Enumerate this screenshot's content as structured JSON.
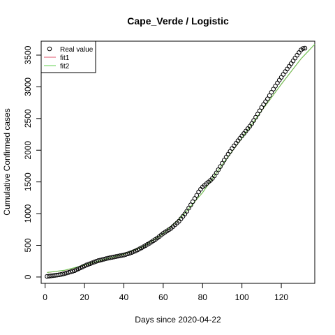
{
  "chart_data": {
    "type": "scatter",
    "title": "Cape_Verde / Logistic",
    "xlabel": "Days since 2020-04-22",
    "ylabel": "Cumulative Confirmed cases",
    "xlim": [
      -2,
      137
    ],
    "ylim": [
      -100,
      3720
    ],
    "xticks": [
      0,
      20,
      40,
      60,
      80,
      100,
      120
    ],
    "yticks": [
      0,
      500,
      1000,
      1500,
      2000,
      2500,
      3000,
      3500
    ],
    "legend_position": "top-left",
    "legend": [
      {
        "label": "Real value",
        "symbol": "circle",
        "color": "#000000"
      },
      {
        "label": "fit1",
        "symbol": "line",
        "color": "#df536b"
      },
      {
        "label": "fit2",
        "symbol": "line",
        "color": "#61d04f"
      }
    ],
    "series": [
      {
        "name": "Real value",
        "kind": "points",
        "color": "#000000",
        "x": [
          1,
          2,
          3,
          4,
          5,
          6,
          7,
          8,
          9,
          10,
          11,
          12,
          13,
          14,
          15,
          16,
          17,
          18,
          19,
          20,
          21,
          22,
          23,
          24,
          25,
          26,
          27,
          28,
          29,
          30,
          31,
          32,
          33,
          34,
          35,
          36,
          37,
          38,
          39,
          40,
          41,
          42,
          43,
          44,
          45,
          46,
          47,
          48,
          49,
          50,
          51,
          52,
          53,
          54,
          55,
          56,
          57,
          58,
          59,
          60,
          61,
          62,
          63,
          64,
          65,
          66,
          67,
          68,
          69,
          70,
          71,
          72,
          73,
          74,
          75,
          76,
          77,
          78,
          79,
          80,
          81,
          82,
          83,
          84,
          85,
          86,
          87,
          88,
          89,
          90,
          91,
          92,
          93,
          94,
          95,
          96,
          97,
          98,
          99,
          100,
          101,
          102,
          103,
          104,
          105,
          106,
          107,
          108,
          109,
          110,
          111,
          112,
          113,
          114,
          115,
          116,
          117,
          118,
          119,
          120,
          121,
          122,
          123,
          124,
          125,
          126,
          127,
          128,
          129,
          130,
          131,
          132
        ],
        "y": [
          10,
          14,
          18,
          22,
          26,
          30,
          34,
          40,
          47,
          55,
          64,
          73,
          82,
          91,
          101,
          115,
          130,
          145,
          160,
          175,
          190,
          201,
          212,
          224,
          236,
          248,
          258,
          266,
          274,
          282,
          290,
          297,
          304,
          310,
          316,
          323,
          329,
          335,
          341,
          347,
          356,
          365,
          375,
          387,
          400,
          413,
          428,
          444,
          460,
          478,
          496,
          514,
          532,
          552,
          572,
          592,
          615,
          638,
          663,
          688,
          708,
          728,
          748,
          768,
          796,
          824,
          852,
          880,
          918,
          956,
          994,
          1038,
          1088,
          1138,
          1188,
          1238,
          1288,
          1342,
          1384,
          1420,
          1446,
          1472,
          1498,
          1524,
          1556,
          1596,
          1642,
          1692,
          1742,
          1794,
          1844,
          1892,
          1938,
          1982,
          2028,
          2070,
          2110,
          2150,
          2188,
          2226,
          2264,
          2302,
          2340,
          2378,
          2420,
          2470,
          2520,
          2570,
          2622,
          2674,
          2722,
          2766,
          2810,
          2862,
          2914,
          2964,
          3012,
          3060,
          3106,
          3150,
          3196,
          3240,
          3282,
          3324,
          3366,
          3410,
          3454,
          3498,
          3540,
          3582,
          3604,
          3610
        ]
      },
      {
        "name": "fit1",
        "kind": "line",
        "color": "#df536b",
        "x": [
          1,
          10,
          20,
          30,
          40,
          50,
          60,
          70,
          80,
          90,
          100,
          110,
          120,
          130,
          137
        ],
        "y": [
          70,
          105,
          185,
          275,
          355,
          480,
          680,
          970,
          1330,
          1770,
          2190,
          2620,
          3040,
          3440,
          3670
        ]
      },
      {
        "name": "fit2",
        "kind": "line",
        "color": "#61d04f",
        "x": [
          1,
          10,
          20,
          30,
          40,
          50,
          60,
          70,
          80,
          90,
          100,
          110,
          120,
          130,
          137
        ],
        "y": [
          72,
          108,
          188,
          278,
          358,
          482,
          682,
          972,
          1332,
          1772,
          2192,
          2622,
          3042,
          3442,
          3672
        ]
      }
    ]
  }
}
